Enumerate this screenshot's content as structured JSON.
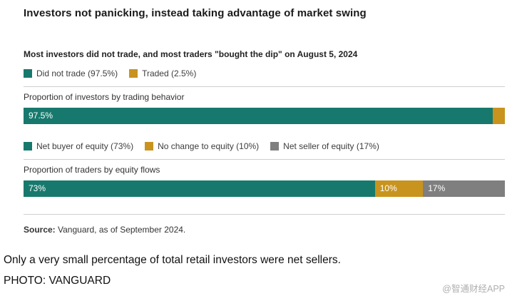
{
  "figure": {
    "title": "Investors not panicking, instead taking advantage of market swing",
    "subtitle": "Most investors did not trade, and most traders \"bought the dip\" on August 5, 2024",
    "source_bold": "Source:",
    "source_rest": " Vanguard, as of September 2024."
  },
  "page": {
    "caption_line1": "Only a very small percentage of total retail investors were net sellers.",
    "caption_line2": "PHOTO: VANGUARD",
    "watermark": "@智通财经APP"
  },
  "colors": {
    "teal": "#17796D",
    "gold": "#C8941E",
    "gray": "#7F7F7F"
  },
  "chart_data": [
    {
      "type": "bar",
      "subtype": "stacked-horizontal",
      "title": "Proportion of investors by trading behavior",
      "xlim": [
        0,
        100
      ],
      "legend": [
        "Did not trade (97.5%)",
        "Traded (2.5%)"
      ],
      "series": [
        {
          "name": "Did not trade",
          "values": [
            97.5
          ],
          "color": "#17796D",
          "label": "97.5%"
        },
        {
          "name": "Traded",
          "values": [
            2.5
          ],
          "color": "#C8941E",
          "label": ""
        }
      ]
    },
    {
      "type": "bar",
      "subtype": "stacked-horizontal",
      "title": "Proportion of traders by equity flows",
      "xlim": [
        0,
        100
      ],
      "legend": [
        "Net buyer of equity (73%)",
        "No change to equity (10%)",
        "Net seller of equity (17%)"
      ],
      "series": [
        {
          "name": "Net buyer of equity",
          "values": [
            73
          ],
          "color": "#17796D",
          "label": "73%"
        },
        {
          "name": "No change to equity",
          "values": [
            10
          ],
          "color": "#C8941E",
          "label": "10%"
        },
        {
          "name": "Net seller of equity",
          "values": [
            17
          ],
          "color": "#7F7F7F",
          "label": "17%"
        }
      ]
    }
  ]
}
